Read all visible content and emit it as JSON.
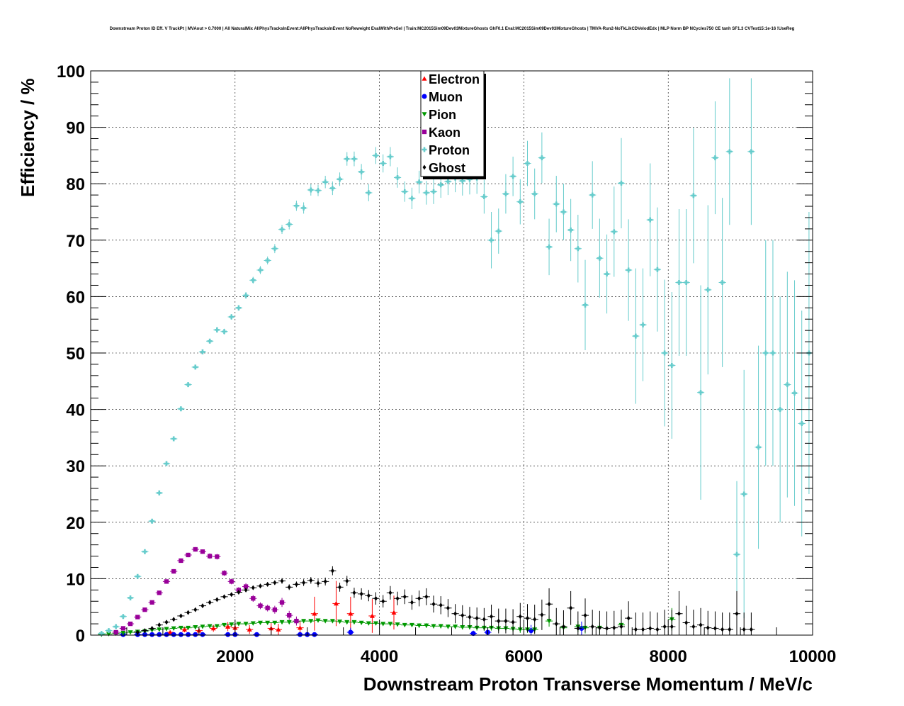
{
  "chart_data": {
    "type": "scatter",
    "title": "Downstream Proton ID Eff. V TrackPt | MVAout > 0.7000 | All NaturalMix AllPhysTracksInEvent:AllPhysTracksInEvent NoReweight EvalWithPreSel | Train:MC2015Sim09Dev03MixtureGhosts GhF0.1 Eval:MC2015Sim09Dev03MixtureGhosts | TMVA-Run2-NoTkLikCDVelodEdx | MLP Norm BP NCycles750 CE tanh SF1.3 CVTest15:1e-16 !UseReg",
    "xlabel": "Downstream Proton Transverse Momentum / MeV/c",
    "ylabel": "Efficiency / %",
    "xlim": [
      0,
      10000
    ],
    "ylim": [
      0,
      100
    ],
    "xticks": [
      2000,
      4000,
      6000,
      8000,
      10000
    ],
    "yticks": [
      0,
      10,
      20,
      30,
      40,
      50,
      60,
      70,
      80,
      90,
      100
    ],
    "grid": true,
    "legend_position": "top-center",
    "series": [
      {
        "name": "Electron",
        "color": "#ff0000",
        "marker": "triangle-up",
        "x": [
          1100,
          1300,
          1500,
          1700,
          1900,
          2000,
          2200,
          2500,
          2600,
          2900,
          3100,
          3400,
          3600,
          3900,
          4200
        ],
        "y": [
          0.5,
          1.0,
          0.8,
          1.2,
          1.5,
          1.3,
          1.0,
          1.2,
          1.0,
          1.3,
          3.8,
          5.6,
          3.8,
          3.4,
          4.0
        ],
        "err": [
          0.3,
          0.5,
          0.5,
          0.6,
          0.8,
          0.8,
          0.8,
          1.0,
          1.0,
          1.2,
          3.0,
          4.0,
          3.0,
          3.0,
          3.0
        ]
      },
      {
        "name": "Muon",
        "color": "#0000ff",
        "marker": "circle",
        "x": [
          450,
          650,
          750,
          850,
          950,
          1050,
          1150,
          1250,
          1350,
          1450,
          1550,
          1900,
          2000,
          2300,
          2900,
          3000,
          3100,
          3600,
          5300,
          5500,
          6100,
          6800
        ],
        "y": [
          0.1,
          0.1,
          0.1,
          0.1,
          0.1,
          0.1,
          0.1,
          0.1,
          0.1,
          0.1,
          0.1,
          0.1,
          0.1,
          0.1,
          0.1,
          0.1,
          0.1,
          0.5,
          0.3,
          0.5,
          0.8,
          1.2
        ],
        "err": [
          0.1,
          0.1,
          0.1,
          0.1,
          0.1,
          0.1,
          0.1,
          0.1,
          0.1,
          0.1,
          0.1,
          0.2,
          0.2,
          0.2,
          0.3,
          0.3,
          0.3,
          0.8,
          0.5,
          0.8,
          1.0,
          1.2
        ]
      },
      {
        "name": "Pion",
        "color": "#009900",
        "marker": "triangle-down",
        "x": [
          150,
          250,
          350,
          450,
          550,
          650,
          750,
          850,
          950,
          1050,
          1150,
          1250,
          1350,
          1450,
          1550,
          1650,
          1750,
          1850,
          1950,
          2050,
          2150,
          2250,
          2350,
          2450,
          2550,
          2650,
          2750,
          2850,
          2950,
          3050,
          3150,
          3250,
          3350,
          3450,
          3550,
          3650,
          3750,
          3850,
          3950,
          4050,
          4150,
          4250,
          4350,
          4450,
          4550,
          4650,
          4750,
          4850,
          4950,
          5050,
          5150,
          5250,
          5350,
          5450,
          5550,
          5650,
          5750,
          5850,
          5950,
          6050,
          6150,
          6350,
          6550,
          6750,
          6850,
          7050,
          7350,
          8050
        ],
        "y": [
          0.1,
          0.2,
          0.3,
          0.4,
          0.5,
          0.6,
          0.7,
          0.9,
          1.0,
          1.1,
          1.2,
          1.3,
          1.3,
          1.4,
          1.5,
          1.6,
          1.6,
          1.8,
          1.9,
          2.0,
          2.0,
          2.1,
          2.2,
          2.2,
          2.2,
          2.3,
          2.3,
          2.4,
          2.5,
          2.5,
          2.6,
          2.5,
          2.5,
          2.4,
          2.3,
          2.3,
          2.2,
          2.1,
          2.1,
          2.0,
          2.0,
          1.9,
          1.8,
          1.8,
          1.7,
          1.7,
          1.6,
          1.6,
          1.5,
          1.5,
          1.4,
          1.4,
          1.3,
          1.3,
          1.3,
          1.2,
          1.2,
          1.1,
          1.0,
          1.0,
          1.0,
          2.5,
          1.3,
          1.5,
          1.3,
          1.3,
          1.8,
          2.8
        ],
        "err": [
          0.1,
          0.1,
          0.1,
          0.1,
          0.1,
          0.1,
          0.1,
          0.1,
          0.1,
          0.1,
          0.1,
          0.1,
          0.1,
          0.1,
          0.1,
          0.1,
          0.1,
          0.2,
          0.2,
          0.2,
          0.2,
          0.2,
          0.2,
          0.2,
          0.2,
          0.2,
          0.3,
          0.3,
          0.3,
          0.3,
          0.3,
          0.3,
          0.3,
          0.3,
          0.3,
          0.3,
          0.3,
          0.3,
          0.3,
          0.3,
          0.3,
          0.3,
          0.3,
          0.3,
          0.4,
          0.4,
          0.4,
          0.4,
          0.4,
          0.4,
          0.4,
          0.4,
          0.5,
          0.5,
          0.5,
          0.5,
          0.5,
          0.6,
          0.6,
          0.6,
          0.6,
          1.0,
          1.0,
          1.0,
          1.0,
          1.0,
          1.5,
          2.0
        ]
      },
      {
        "name": "Kaon",
        "color": "#990099",
        "marker": "square",
        "x": [
          350,
          450,
          550,
          650,
          750,
          850,
          950,
          1050,
          1150,
          1250,
          1350,
          1450,
          1550,
          1650,
          1750,
          1850,
          1950,
          2050,
          2150,
          2250,
          2350,
          2450,
          2550,
          2650,
          2750,
          2850
        ],
        "y": [
          0.5,
          1.2,
          2.0,
          3.2,
          4.5,
          5.8,
          7.5,
          9.5,
          11.3,
          13.2,
          14.2,
          15.2,
          14.8,
          14.0,
          13.9,
          11.0,
          9.5,
          8.0,
          8.6,
          6.5,
          5.2,
          4.8,
          4.5,
          5.8,
          3.5,
          2.5
        ],
        "err": [
          0.1,
          0.2,
          0.2,
          0.3,
          0.3,
          0.3,
          0.3,
          0.3,
          0.4,
          0.4,
          0.4,
          0.4,
          0.4,
          0.5,
          0.5,
          0.5,
          0.5,
          0.5,
          0.6,
          0.6,
          0.6,
          0.6,
          0.7,
          0.8,
          0.8,
          0.8
        ]
      },
      {
        "name": "Proton",
        "color": "#66cccc",
        "marker": "cross",
        "x": [
          150,
          250,
          350,
          450,
          550,
          650,
          750,
          850,
          950,
          1050,
          1150,
          1250,
          1350,
          1450,
          1550,
          1650,
          1750,
          1850,
          1950,
          2050,
          2150,
          2250,
          2350,
          2450,
          2550,
          2650,
          2750,
          2850,
          2950,
          3050,
          3150,
          3250,
          3350,
          3450,
          3550,
          3650,
          3750,
          3850,
          3950,
          4050,
          4150,
          4250,
          4350,
          4450,
          4550,
          4650,
          4750,
          4850,
          4950,
          5050,
          5150,
          5250,
          5350,
          5450,
          5550,
          5650,
          5750,
          5850,
          5950,
          6050,
          6150,
          6250,
          6350,
          6450,
          6550,
          6650,
          6750,
          6850,
          6950,
          7050,
          7150,
          7250,
          7350,
          7450,
          7550,
          7650,
          7750,
          7850,
          7950,
          8050,
          8150,
          8250,
          8350,
          8450,
          8550,
          8650,
          8750,
          8850,
          8950,
          9050,
          9150,
          9250,
          9350,
          9450,
          9550,
          9650,
          9750,
          9850,
          9950
        ],
        "y": [
          0.3,
          0.8,
          1.5,
          3.3,
          6.6,
          10.4,
          14.8,
          20.2,
          25.2,
          30.4,
          34.8,
          40.1,
          44.4,
          47.5,
          50.2,
          52.1,
          54.1,
          53.8,
          56.4,
          58.0,
          60.2,
          62.9,
          64.7,
          66.4,
          68.5,
          71.9,
          72.8,
          76.1,
          75.7,
          78.9,
          78.8,
          80.3,
          79.2,
          80.8,
          84.4,
          84.4,
          82.1,
          78.4,
          85.0,
          83.6,
          84.8,
          81.1,
          78.6,
          77.4,
          80.3,
          78.4,
          78.6,
          79.8,
          80.4,
          81.0,
          80.5,
          80.8,
          81.0,
          77.7,
          70.0,
          71.6,
          78.2,
          81.3,
          76.8,
          83.6,
          78.2,
          84.6,
          68.8,
          76.4,
          75.0,
          71.8,
          68.5,
          58.5,
          78.0,
          66.8,
          64.0,
          71.5,
          80.1,
          64.7,
          53.0,
          55.0,
          73.6,
          64.8,
          50.0,
          47.8,
          62.5,
          62.5,
          77.9,
          43.0,
          61.2,
          84.6,
          62.5,
          85.7,
          14.3,
          25.0,
          85.7,
          33.3,
          50.0,
          50.0,
          40.0,
          44.4,
          42.9,
          37.5,
          50.0
        ],
        "err": [
          0.2,
          0.2,
          0.3,
          0.3,
          0.3,
          0.3,
          0.3,
          0.3,
          0.3,
          0.3,
          0.3,
          0.3,
          0.4,
          0.4,
          0.4,
          0.4,
          0.5,
          0.5,
          0.5,
          0.5,
          0.6,
          0.6,
          0.7,
          0.7,
          0.8,
          0.8,
          0.9,
          0.9,
          1.0,
          1.0,
          1.0,
          1.1,
          1.2,
          1.2,
          1.2,
          1.3,
          1.4,
          1.5,
          1.5,
          1.6,
          1.7,
          1.8,
          1.8,
          1.9,
          2.0,
          2.1,
          2.2,
          2.3,
          2.4,
          2.5,
          2.6,
          2.7,
          2.8,
          3.0,
          5.0,
          4.0,
          3.5,
          3.5,
          4.0,
          4.0,
          4.5,
          4.5,
          5.0,
          5.0,
          5.0,
          5.5,
          6.0,
          8.0,
          6.0,
          7.0,
          7.0,
          8.0,
          8.0,
          9.0,
          12.0,
          10.0,
          10.0,
          11.0,
          13.0,
          13.0,
          13.0,
          13.0,
          12.0,
          19.0,
          15.0,
          10.0,
          15.0,
          13.0,
          13.0,
          22.0,
          13.0,
          18.0,
          20.0,
          20.0,
          20.0,
          20.0,
          20.0,
          20.0,
          25.0
        ],
        "err_up": [
          0.2,
          0.2,
          0.3,
          0.3,
          0.3,
          0.3,
          0.3,
          0.3,
          0.3,
          0.3,
          0.3,
          0.3,
          0.4,
          0.4,
          0.4,
          0.4,
          0.5,
          0.5,
          0.5,
          0.5,
          0.6,
          0.6,
          0.7,
          0.7,
          0.8,
          0.8,
          0.9,
          0.9,
          1.0,
          1.0,
          1.0,
          1.1,
          1.2,
          1.2,
          1.2,
          1.3,
          1.4,
          1.5,
          1.5,
          1.6,
          1.7,
          1.8,
          1.8,
          1.9,
          2.0,
          2.1,
          2.2,
          2.3,
          2.4,
          2.5,
          2.6,
          2.7,
          2.8,
          3.0,
          5.0,
          4.0,
          3.5,
          3.5,
          4.0,
          4.0,
          4.5,
          4.5,
          5.0,
          5.0,
          5.0,
          5.5,
          6.0,
          8.0,
          6.0,
          7.0,
          7.0,
          8.0,
          8.0,
          9.0,
          12.0,
          10.0,
          10.0,
          11.0,
          13.0,
          13.0,
          13.0,
          13.0,
          12.0,
          19.0,
          15.0,
          10.0,
          15.0,
          13.0,
          13.0,
          22.0,
          13.0,
          18.0,
          20.0,
          20.0,
          20.0,
          20.0,
          20.0,
          20.0,
          25.0
        ]
      },
      {
        "name": "Ghost",
        "color": "#000000",
        "marker": "diamond",
        "x": [
          650,
          750,
          850,
          950,
          1050,
          1150,
          1250,
          1350,
          1450,
          1550,
          1650,
          1750,
          1850,
          1950,
          2050,
          2150,
          2250,
          2350,
          2450,
          2550,
          2650,
          2750,
          2850,
          2950,
          3050,
          3150,
          3250,
          3350,
          3450,
          3550,
          3650,
          3750,
          3850,
          3950,
          4050,
          4150,
          4250,
          4350,
          4450,
          4550,
          4650,
          4750,
          4850,
          4950,
          5050,
          5150,
          5250,
          5350,
          5450,
          5550,
          5650,
          5750,
          5850,
          5950,
          6050,
          6150,
          6250,
          6350,
          6450,
          6550,
          6650,
          6750,
          6850,
          6950,
          7050,
          7150,
          7250,
          7350,
          7450,
          7550,
          7650,
          7750,
          7850,
          7950,
          8050,
          8150,
          8250,
          8350,
          8450,
          8550,
          8650,
          8750,
          8850,
          8950,
          9050,
          9150
        ],
        "y": [
          0.5,
          0.8,
          1.2,
          1.8,
          2.3,
          2.8,
          3.4,
          4.0,
          4.5,
          5.2,
          5.8,
          6.3,
          6.8,
          7.2,
          7.6,
          8.0,
          8.4,
          8.7,
          9.0,
          9.3,
          9.6,
          8.5,
          9.0,
          9.3,
          9.7,
          9.2,
          9.5,
          11.4,
          8.5,
          9.6,
          7.5,
          7.3,
          7.0,
          6.5,
          6.0,
          7.5,
          6.5,
          6.8,
          5.8,
          6.5,
          6.8,
          5.5,
          5.3,
          4.8,
          3.8,
          3.5,
          3.2,
          3.0,
          2.8,
          3.3,
          2.5,
          2.5,
          2.3,
          3.3,
          3.0,
          2.8,
          3.6,
          5.5,
          2.0,
          1.5,
          4.8,
          1.2,
          3.5,
          1.5,
          1.3,
          1.2,
          1.3,
          1.5,
          3.0,
          1.0,
          1.0,
          1.2,
          1.0,
          1.5,
          1.5,
          3.8,
          2.2,
          1.5,
          1.8,
          1.3,
          1.2,
          1.0,
          1.0,
          3.8,
          1.0,
          1.0
        ],
        "err": [
          0.1,
          0.1,
          0.1,
          0.1,
          0.1,
          0.1,
          0.1,
          0.2,
          0.2,
          0.2,
          0.2,
          0.2,
          0.2,
          0.3,
          0.3,
          0.3,
          0.3,
          0.4,
          0.4,
          0.4,
          0.5,
          0.5,
          0.5,
          0.6,
          0.6,
          0.7,
          0.7,
          0.8,
          0.8,
          0.9,
          0.9,
          1.0,
          1.0,
          1.1,
          1.1,
          1.2,
          1.2,
          1.3,
          1.3,
          1.4,
          1.5,
          1.5,
          1.6,
          1.6,
          1.7,
          1.8,
          1.8,
          1.9,
          2.0,
          2.1,
          2.2,
          2.2,
          2.3,
          2.4,
          2.5,
          2.6,
          2.7,
          2.8,
          2.8,
          2.9,
          3.0,
          3.0,
          3.0,
          3.0,
          3.0,
          3.0,
          3.0,
          3.0,
          3.0,
          3.0,
          3.0,
          3.0,
          3.0,
          3.0,
          3.0,
          4.0,
          3.0,
          3.0,
          3.0,
          3.0,
          3.0,
          3.0,
          3.0,
          4.0,
          3.0,
          3.0
        ]
      }
    ]
  }
}
